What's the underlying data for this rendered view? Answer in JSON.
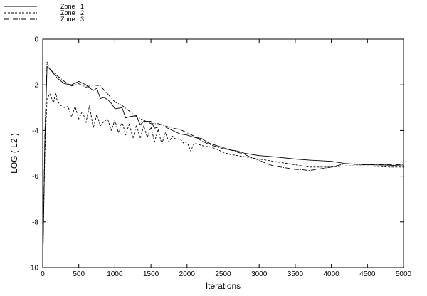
{
  "chart_data": {
    "type": "line",
    "title": "",
    "xlabel": "Iterations",
    "ylabel": "LOG ( L2 )",
    "xlim": [
      0,
      5000
    ],
    "ylim": [
      -10,
      0
    ],
    "xticks": [
      "0",
      "500",
      "1000",
      "1500",
      "2000",
      "2500",
      "3000",
      "3500",
      "4000",
      "4500",
      "5000"
    ],
    "yticks": [
      "0",
      "-2",
      "-4",
      "-6",
      "-8",
      "-10"
    ],
    "legend_position": "top-left, above plot",
    "grid": false,
    "series": [
      {
        "name": "Zone   1",
        "style": "solid",
        "x": [
          0,
          30,
          60,
          100,
          150,
          200,
          300,
          400,
          500,
          600,
          700,
          750,
          800,
          850,
          900,
          950,
          1000,
          1100,
          1150,
          1200,
          1300,
          1350,
          1400,
          1500,
          1550,
          1600,
          1700,
          1800,
          1900,
          2000,
          2100,
          2200,
          2300,
          2400,
          2500,
          2600,
          2700,
          2800,
          3000,
          3200,
          3500,
          3700,
          4000,
          4200,
          4500,
          4800,
          5000
        ],
        "y": [
          -10,
          -4.6,
          -1.2,
          -1.3,
          -1.5,
          -1.7,
          -1.95,
          -2.0,
          -1.85,
          -2.0,
          -2.25,
          -2.15,
          -2.6,
          -2.55,
          -2.65,
          -2.8,
          -3.05,
          -3.0,
          -3.45,
          -3.4,
          -3.35,
          -3.75,
          -3.6,
          -3.6,
          -3.9,
          -3.85,
          -3.85,
          -4.0,
          -4.15,
          -4.2,
          -4.3,
          -4.35,
          -4.55,
          -4.65,
          -4.75,
          -4.85,
          -4.9,
          -5.0,
          -5.1,
          -5.15,
          -5.25,
          -5.3,
          -5.35,
          -5.45,
          -5.5,
          -5.52,
          -5.55
        ]
      },
      {
        "name": "Zone   2",
        "style": "dashed",
        "x": [
          0,
          30,
          60,
          100,
          150,
          180,
          200,
          250,
          300,
          350,
          400,
          450,
          500,
          550,
          600,
          650,
          700,
          750,
          800,
          850,
          900,
          950,
          1000,
          1050,
          1100,
          1150,
          1200,
          1250,
          1300,
          1350,
          1400,
          1450,
          1500,
          1550,
          1600,
          1650,
          1700,
          1750,
          1800,
          1850,
          1900,
          1950,
          2000,
          2050,
          2100,
          2150,
          2200,
          2250,
          2300,
          2350,
          2400,
          2500,
          2600,
          2800,
          3000,
          3200,
          3500,
          3700,
          4000,
          4200,
          4500,
          4800,
          5000
        ],
        "y": [
          -10,
          -5.0,
          -2.6,
          -2.4,
          -2.8,
          -2.3,
          -2.7,
          -2.9,
          -3.0,
          -2.95,
          -3.4,
          -2.95,
          -3.5,
          -3.15,
          -3.65,
          -2.9,
          -3.9,
          -3.3,
          -3.8,
          -3.6,
          -3.5,
          -4.0,
          -3.55,
          -4.1,
          -3.6,
          -4.2,
          -3.7,
          -4.35,
          -3.75,
          -4.35,
          -3.8,
          -4.3,
          -3.85,
          -4.5,
          -3.95,
          -4.6,
          -4.1,
          -4.5,
          -4.25,
          -4.4,
          -4.35,
          -4.55,
          -4.5,
          -4.9,
          -4.55,
          -4.6,
          -4.65,
          -4.7,
          -4.7,
          -4.75,
          -4.8,
          -4.95,
          -5.05,
          -5.15,
          -5.25,
          -5.35,
          -5.5,
          -5.6,
          -5.6,
          -5.55,
          -5.55,
          -5.6,
          -5.6
        ]
      },
      {
        "name": "Zone   3",
        "style": "dashdot",
        "x": [
          0,
          30,
          60,
          100,
          150,
          200,
          300,
          400,
          500,
          600,
          700,
          800,
          900,
          1000,
          1100,
          1200,
          1300,
          1400,
          1500,
          1600,
          1700,
          1800,
          1900,
          2000,
          2100,
          2200,
          2300,
          2400,
          2500,
          2600,
          2700,
          2800,
          2900,
          3000,
          3100,
          3200,
          3400,
          3500,
          3600,
          3700,
          3800,
          4000,
          4200,
          4400,
          4600,
          4800,
          5000
        ],
        "y": [
          -10,
          -4.2,
          -1.0,
          -1.35,
          -1.45,
          -1.6,
          -1.85,
          -2.05,
          -1.95,
          -2.1,
          -2.0,
          -2.05,
          -2.4,
          -2.75,
          -2.9,
          -3.15,
          -3.4,
          -3.55,
          -3.7,
          -3.7,
          -3.8,
          -3.9,
          -3.95,
          -4.1,
          -4.25,
          -4.45,
          -4.6,
          -4.7,
          -4.8,
          -4.85,
          -4.95,
          -5.05,
          -5.2,
          -5.3,
          -5.45,
          -5.55,
          -5.65,
          -5.7,
          -5.72,
          -5.75,
          -5.7,
          -5.6,
          -5.45,
          -5.5,
          -5.48,
          -5.5,
          -5.5
        ]
      }
    ]
  }
}
